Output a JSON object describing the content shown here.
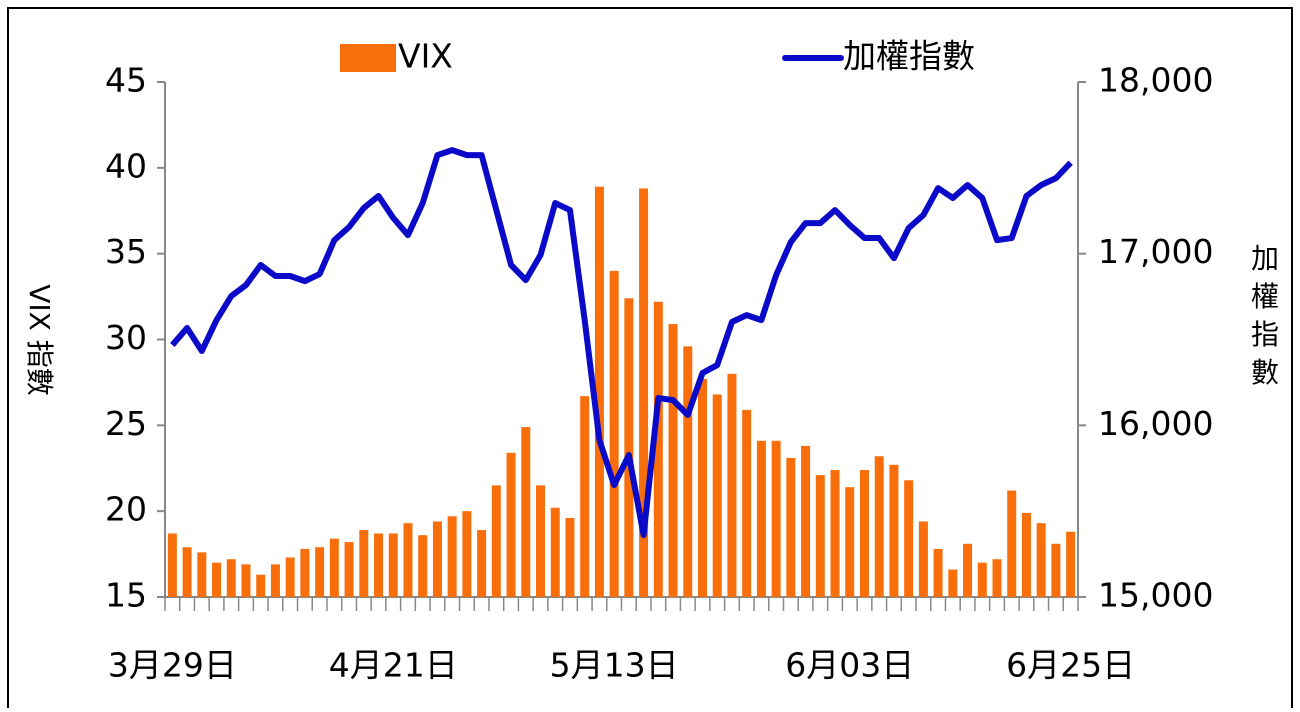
{
  "chart_data": {
    "type": "bar_line",
    "ylabel": "VIX 指數",
    "y2label": "加權指數",
    "categories": [
      "3月29日",
      null,
      null,
      null,
      null,
      null,
      null,
      null,
      null,
      null,
      null,
      null,
      null,
      null,
      null,
      "4月21日",
      null,
      null,
      null,
      null,
      null,
      null,
      null,
      null,
      null,
      null,
      null,
      null,
      null,
      null,
      "5月13日",
      null,
      null,
      null,
      null,
      null,
      null,
      null,
      null,
      null,
      null,
      null,
      null,
      null,
      null,
      null,
      "6月03日",
      null,
      null,
      null,
      null,
      null,
      null,
      null,
      null,
      null,
      null,
      null,
      null,
      null,
      null,
      "6月25日"
    ],
    "series": [
      {
        "name": "VIX",
        "type": "bar",
        "color": "#f76e0a",
        "axis": "y",
        "values": [
          18.7,
          17.9,
          17.6,
          17.0,
          17.2,
          16.9,
          16.3,
          16.9,
          17.3,
          17.8,
          17.9,
          18.4,
          18.2,
          18.9,
          18.7,
          18.7,
          19.3,
          18.6,
          19.4,
          19.7,
          20.0,
          18.9,
          21.5,
          23.4,
          24.9,
          21.5,
          20.2,
          19.6,
          26.7,
          38.9,
          34.0,
          32.4,
          38.8,
          32.2,
          30.9,
          29.6,
          27.7,
          26.8,
          28.0,
          25.9,
          24.1,
          24.1,
          23.1,
          23.8,
          22.1,
          22.4,
          21.4,
          22.4,
          23.2,
          22.7,
          21.8,
          19.4,
          17.8,
          16.6,
          18.1,
          17.0,
          17.2,
          21.2,
          19.9,
          19.3,
          18.1,
          18.8
        ]
      },
      {
        "name": "加權指數",
        "type": "line",
        "color": "#0a0ac8",
        "axis": "y2",
        "values": [
          16468,
          16567,
          16433,
          16613,
          16753,
          16817,
          16934,
          16870,
          16870,
          16840,
          16881,
          17079,
          17155,
          17266,
          17336,
          17208,
          17108,
          17295,
          17574,
          17603,
          17574,
          17574,
          17254,
          16934,
          16846,
          16992,
          17295,
          17254,
          16613,
          15914,
          15652,
          15827,
          15361,
          16159,
          16147,
          16060,
          16305,
          16351,
          16602,
          16642,
          16613,
          16875,
          17068,
          17178,
          17178,
          17254,
          17167,
          17091,
          17091,
          16974,
          17149,
          17225,
          17382,
          17324,
          17400,
          17324,
          17079,
          17091,
          17336,
          17400,
          17440,
          17530
        ]
      }
    ],
    "ylim": [
      15,
      45
    ],
    "yticks": [
      15,
      20,
      25,
      30,
      35,
      40,
      45
    ],
    "y2lim": [
      15000,
      18000
    ],
    "y2ticks": [
      {
        "value": 15000,
        "label": "15,000"
      },
      {
        "value": 16000,
        "label": "16,000"
      },
      {
        "value": 17000,
        "label": "17,000"
      },
      {
        "value": 18000,
        "label": "18,000"
      }
    ]
  }
}
